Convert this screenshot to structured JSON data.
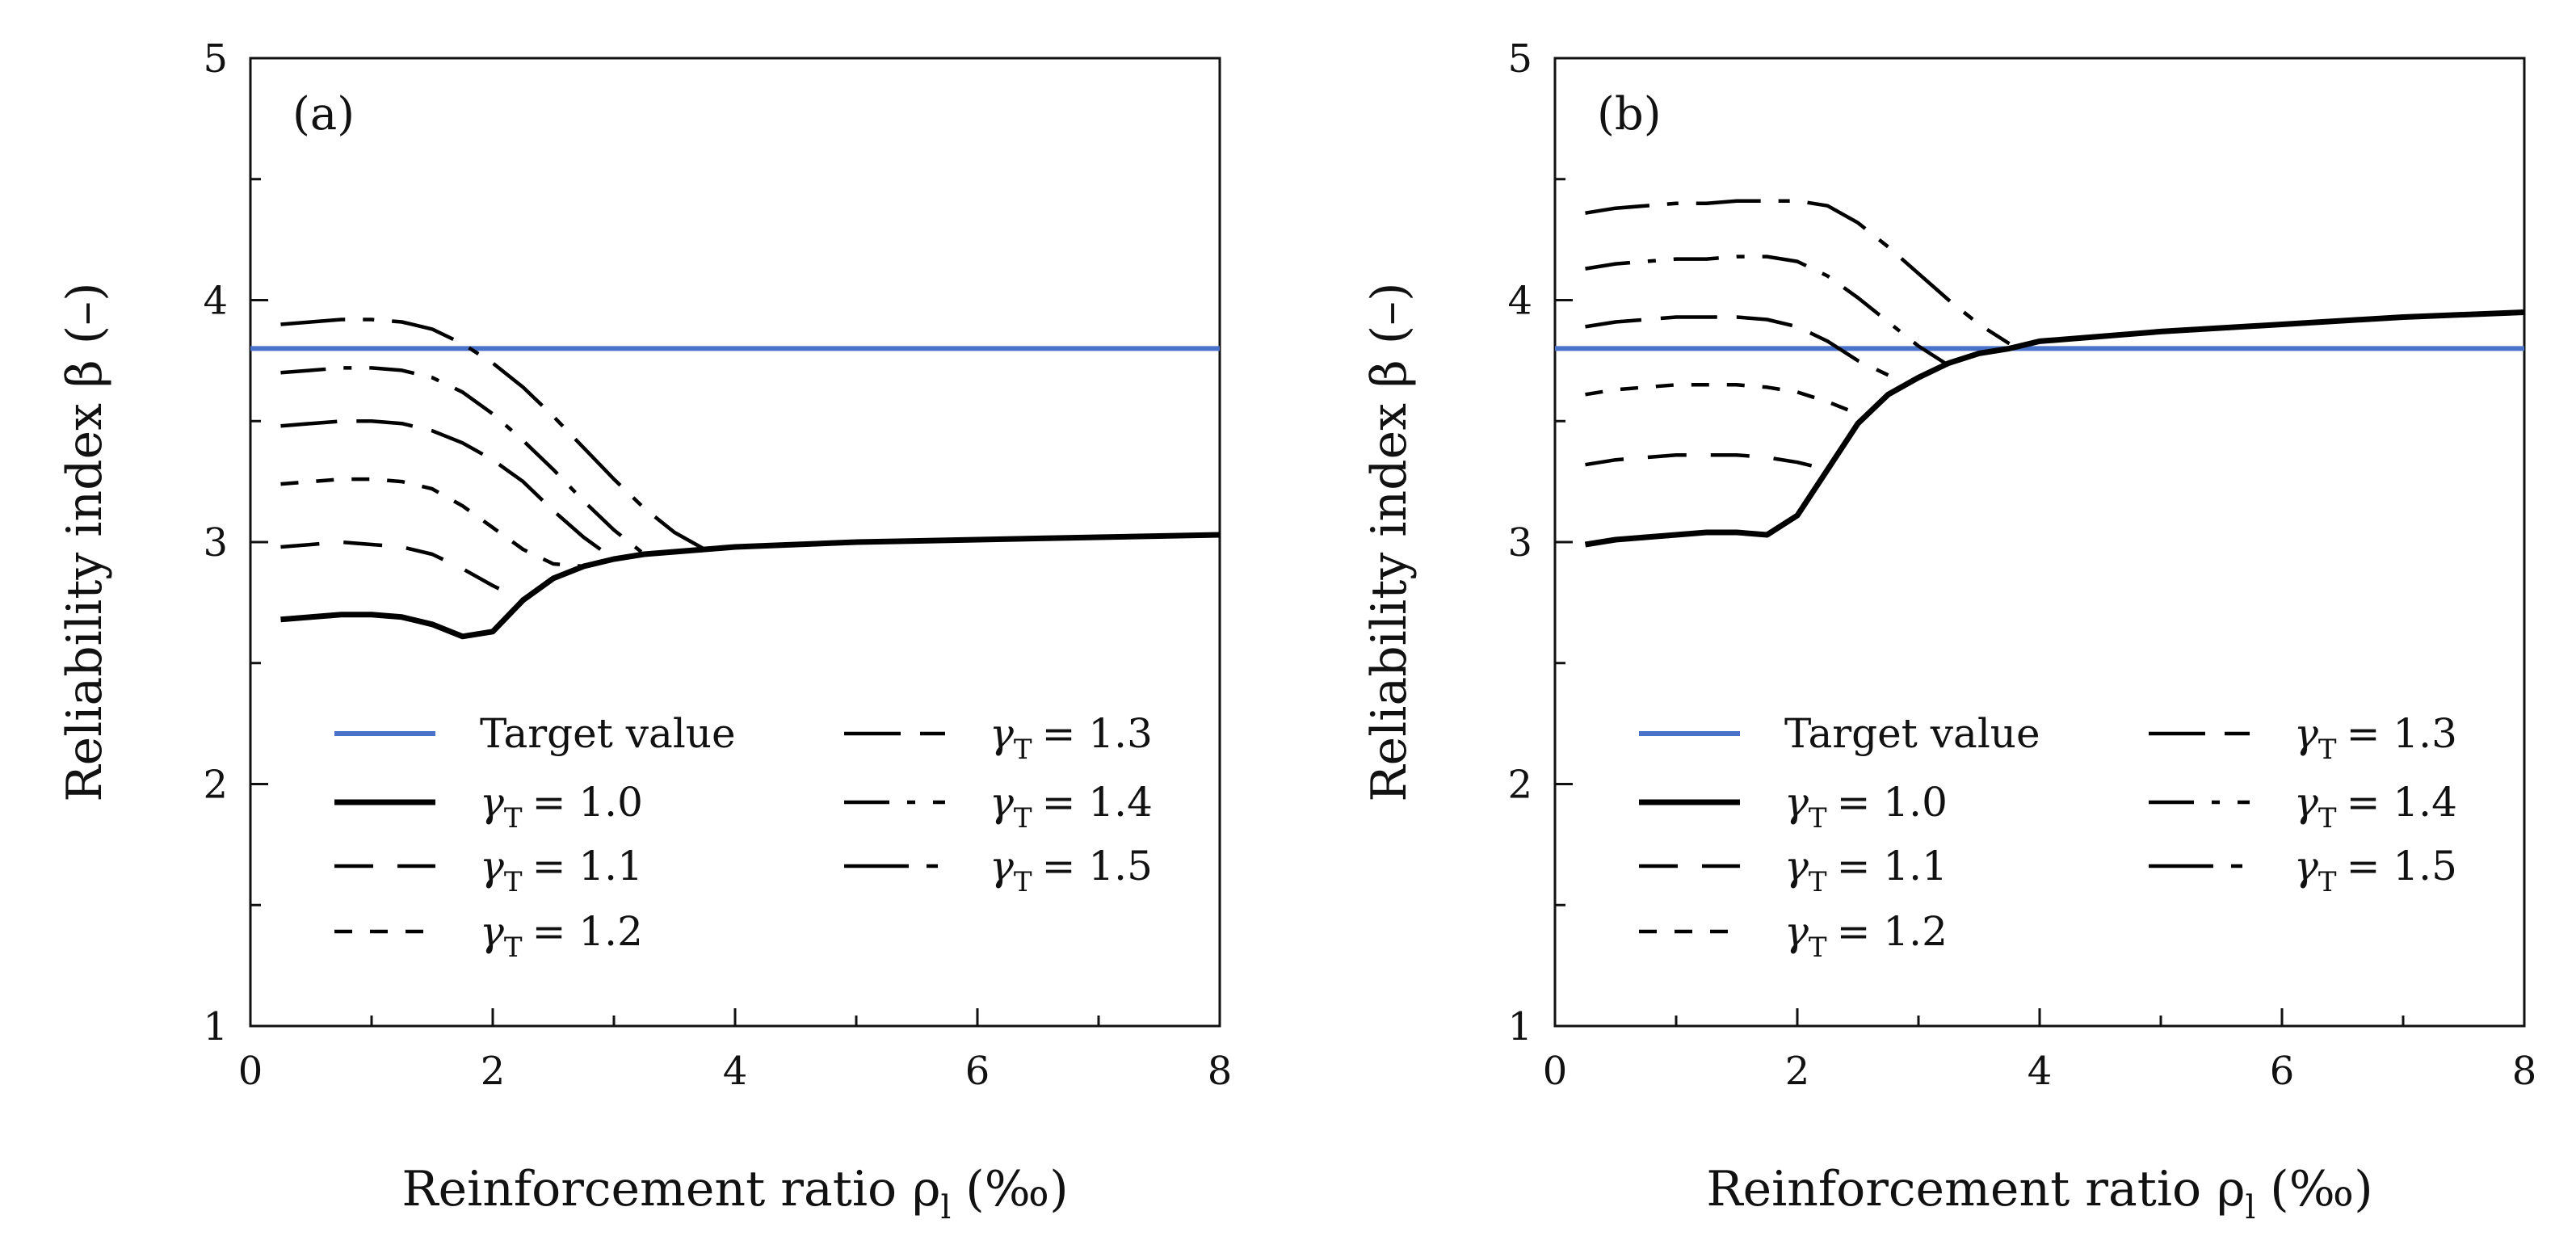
{
  "chart_data": [
    {
      "type": "line",
      "panel_label": "(a)",
      "title": "",
      "xlabel": "Reinforcement ratio ρ",
      "xlabel_sub": "l",
      "xlabel_unit": "(‰)",
      "ylabel": "Reliability index β (–)",
      "xlim": [
        0,
        8
      ],
      "ylim": [
        1,
        5
      ],
      "xticks": [
        "0",
        "2",
        "4",
        "6",
        "8"
      ],
      "yticks": [
        "1",
        "2",
        "3",
        "4",
        "5"
      ],
      "grid": false,
      "legend_position": "bottom-center",
      "target": {
        "name": "Target value",
        "value": 3.8,
        "color": "#4a72c8"
      },
      "series": [
        {
          "name": "γT = 1.0",
          "symbol": "γ",
          "sub": "T",
          "value_text": "= 1.0",
          "style": "solid",
          "x": [
            0.25,
            0.5,
            0.75,
            1.0,
            1.25,
            1.5,
            1.75,
            2.0,
            2.25,
            2.5,
            2.75,
            3.0,
            3.25,
            3.5,
            3.75,
            4,
            5,
            6,
            7,
            8
          ],
          "y": [
            2.68,
            2.69,
            2.7,
            2.7,
            2.69,
            2.66,
            2.61,
            2.63,
            2.76,
            2.85,
            2.9,
            2.93,
            2.95,
            2.96,
            2.97,
            2.98,
            3.0,
            3.01,
            3.02,
            3.03
          ]
        },
        {
          "name": "γT = 1.1",
          "symbol": "γ",
          "sub": "T",
          "value_text": "= 1.1",
          "style": "dash",
          "x": [
            0.25,
            0.5,
            0.75,
            1.0,
            1.25,
            1.5,
            1.75,
            2.0,
            2.25
          ],
          "y": [
            2.98,
            2.99,
            3.0,
            2.99,
            2.98,
            2.95,
            2.89,
            2.82,
            2.76
          ]
        },
        {
          "name": "γT = 1.2",
          "symbol": "γ",
          "sub": "T",
          "value_text": "= 1.2",
          "style": "shortdash",
          "x": [
            0.25,
            0.5,
            0.75,
            1.0,
            1.25,
            1.5,
            1.75,
            2.0,
            2.25,
            2.5,
            2.75
          ],
          "y": [
            3.24,
            3.25,
            3.26,
            3.26,
            3.25,
            3.22,
            3.15,
            3.06,
            2.97,
            2.91,
            2.9
          ]
        },
        {
          "name": "γT = 1.3",
          "symbol": "γ",
          "sub": "T",
          "value_text": "= 1.3",
          "style": "longdash",
          "x": [
            0.25,
            0.5,
            0.75,
            1.0,
            1.25,
            1.5,
            1.75,
            2.0,
            2.25,
            2.5,
            2.75,
            3.0
          ],
          "y": [
            3.48,
            3.49,
            3.5,
            3.5,
            3.49,
            3.46,
            3.41,
            3.34,
            3.25,
            3.13,
            3.02,
            2.93
          ]
        },
        {
          "name": "γT = 1.4",
          "symbol": "γ",
          "sub": "T",
          "value_text": "= 1.4",
          "style": "dashdot",
          "x": [
            0.25,
            0.5,
            0.75,
            1.0,
            1.25,
            1.5,
            1.75,
            2.0,
            2.25,
            2.5,
            2.75,
            3.0,
            3.25
          ],
          "y": [
            3.7,
            3.71,
            3.72,
            3.72,
            3.71,
            3.68,
            3.62,
            3.53,
            3.42,
            3.3,
            3.17,
            3.05,
            2.95
          ]
        },
        {
          "name": "γT = 1.5",
          "symbol": "γ",
          "sub": "T",
          "value_text": "= 1.5",
          "style": "longdashdot",
          "x": [
            0.25,
            0.5,
            0.75,
            1.0,
            1.25,
            1.5,
            1.75,
            2.0,
            2.25,
            2.5,
            2.75,
            3.0,
            3.25,
            3.5,
            3.75
          ],
          "y": [
            3.9,
            3.91,
            3.92,
            3.92,
            3.91,
            3.88,
            3.82,
            3.74,
            3.64,
            3.52,
            3.39,
            3.26,
            3.14,
            3.04,
            2.97
          ]
        }
      ]
    },
    {
      "type": "line",
      "panel_label": "(b)",
      "title": "",
      "xlabel": "Reinforcement ratio ρ",
      "xlabel_sub": "l",
      "xlabel_unit": "(‰)",
      "ylabel": "Reliability index β (–)",
      "xlim": [
        0,
        8
      ],
      "ylim": [
        1,
        5
      ],
      "xticks": [
        "0",
        "2",
        "4",
        "6",
        "8"
      ],
      "yticks": [
        "1",
        "2",
        "3",
        "4",
        "5"
      ],
      "grid": false,
      "legend_position": "bottom-center",
      "target": {
        "name": "Target value",
        "value": 3.8,
        "color": "#4a72c8"
      },
      "series": [
        {
          "name": "γT = 1.0",
          "symbol": "γ",
          "sub": "T",
          "value_text": "= 1.0",
          "style": "solid",
          "x": [
            0.25,
            0.5,
            0.75,
            1.0,
            1.25,
            1.5,
            1.75,
            2.0,
            2.25,
            2.5,
            2.75,
            3.0,
            3.25,
            3.5,
            3.75,
            4,
            5,
            6,
            7,
            8
          ],
          "y": [
            2.99,
            3.01,
            3.02,
            3.03,
            3.04,
            3.04,
            3.03,
            3.11,
            3.3,
            3.49,
            3.61,
            3.68,
            3.74,
            3.78,
            3.8,
            3.83,
            3.87,
            3.9,
            3.93,
            3.95
          ]
        },
        {
          "name": "γT = 1.1",
          "symbol": "γ",
          "sub": "T",
          "value_text": "= 1.1",
          "style": "dash",
          "x": [
            0.25,
            0.5,
            0.75,
            1.0,
            1.25,
            1.5,
            1.75,
            2.0,
            2.25
          ],
          "y": [
            3.32,
            3.34,
            3.35,
            3.36,
            3.36,
            3.36,
            3.35,
            3.33,
            3.3
          ]
        },
        {
          "name": "γT = 1.2",
          "symbol": "γ",
          "sub": "T",
          "value_text": "= 1.2",
          "style": "shortdash",
          "x": [
            0.25,
            0.5,
            0.75,
            1.0,
            1.25,
            1.5,
            1.75,
            2.0,
            2.25,
            2.5
          ],
          "y": [
            3.61,
            3.63,
            3.64,
            3.65,
            3.65,
            3.65,
            3.64,
            3.62,
            3.58,
            3.53
          ]
        },
        {
          "name": "γT = 1.3",
          "symbol": "γ",
          "sub": "T",
          "value_text": "= 1.3",
          "style": "longdash",
          "x": [
            0.25,
            0.5,
            0.75,
            1.0,
            1.25,
            1.5,
            1.75,
            2.0,
            2.25,
            2.5,
            2.75
          ],
          "y": [
            3.89,
            3.91,
            3.92,
            3.93,
            3.93,
            3.93,
            3.92,
            3.89,
            3.83,
            3.75,
            3.69
          ]
        },
        {
          "name": "γT = 1.4",
          "symbol": "γ",
          "sub": "T",
          "value_text": "= 1.4",
          "style": "dashdot",
          "x": [
            0.25,
            0.5,
            0.75,
            1.0,
            1.25,
            1.5,
            1.75,
            2.0,
            2.25,
            2.5,
            2.75,
            3.0,
            3.25
          ],
          "y": [
            4.13,
            4.15,
            4.16,
            4.17,
            4.17,
            4.18,
            4.18,
            4.16,
            4.1,
            4.01,
            3.91,
            3.81,
            3.73
          ]
        },
        {
          "name": "γT = 1.5",
          "symbol": "γ",
          "sub": "T",
          "value_text": "= 1.5",
          "style": "longdashdot",
          "x": [
            0.25,
            0.5,
            0.75,
            1.0,
            1.25,
            1.5,
            1.75,
            2.0,
            2.25,
            2.5,
            2.75,
            3.0,
            3.25,
            3.5,
            3.75
          ],
          "y": [
            4.36,
            4.38,
            4.39,
            4.4,
            4.4,
            4.41,
            4.41,
            4.41,
            4.39,
            4.32,
            4.22,
            4.11,
            4.0,
            3.9,
            3.82
          ]
        }
      ]
    }
  ]
}
